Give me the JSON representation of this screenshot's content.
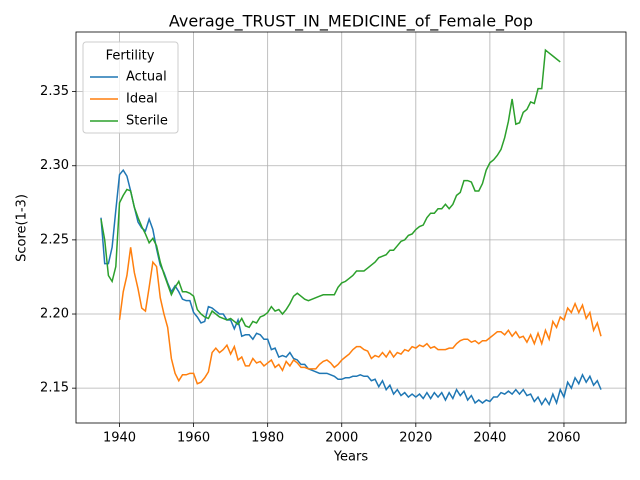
{
  "chart_data": {
    "type": "line",
    "title": "Average_TRUST_IN_MEDICINE_of_Female_Pop",
    "xlabel": "Years",
    "ylabel": "Score(1-3)",
    "legend_title": "Fertility",
    "legend_loc": "upper left",
    "grid": true,
    "xlim": [
      1928.25,
      2076.75
    ],
    "ylim": [
      2.1265,
      2.3902
    ],
    "xticks": [
      1940,
      1960,
      1980,
      2000,
      2020,
      2040,
      2060
    ],
    "yticks": [
      2.15,
      {
        "value": 2.2,
        "label": "2.20"
      },
      2.25,
      {
        "value": 2.3,
        "label": "2.30"
      },
      2.35
    ],
    "series": [
      {
        "name": "Actual",
        "color": "#1f77b4",
        "x": [
          1935,
          1936,
          1937,
          1938,
          1939,
          1940,
          1941,
          1942,
          1943,
          1944,
          1945,
          1946,
          1947,
          1948,
          1949,
          1950,
          1951,
          1952,
          1953,
          1954,
          1955,
          1956,
          1957,
          1958,
          1959,
          1960,
          1961,
          1962,
          1963,
          1964,
          1965,
          1966,
          1967,
          1968,
          1969,
          1970,
          1971,
          1972,
          1973,
          1974,
          1975,
          1976,
          1977,
          1978,
          1979,
          1980,
          1981,
          1982,
          1983,
          1984,
          1985,
          1986,
          1987,
          1988,
          1989,
          1990,
          1991,
          1992,
          1993,
          1994,
          1995,
          1996,
          1997,
          1998,
          1999,
          2000,
          2001,
          2002,
          2003,
          2004,
          2005,
          2006,
          2007,
          2008,
          2009,
          2010,
          2011,
          2012,
          2013,
          2014,
          2015,
          2016,
          2017,
          2018,
          2019,
          2020,
          2021,
          2022,
          2023,
          2024,
          2025,
          2026,
          2027,
          2028,
          2029,
          2030,
          2031,
          2032,
          2033,
          2034,
          2035,
          2036,
          2037,
          2038,
          2039,
          2040,
          2041,
          2042,
          2043,
          2044,
          2045,
          2046,
          2047,
          2048,
          2049,
          2050,
          2051,
          2052,
          2053,
          2054,
          2055,
          2056,
          2057,
          2058,
          2059,
          2060,
          2061,
          2062,
          2063,
          2064,
          2065,
          2066,
          2067,
          2068,
          2069,
          2070
        ],
        "values": [
          2.265,
          2.234,
          2.234,
          2.245,
          2.27,
          2.294,
          2.297,
          2.293,
          2.283,
          2.272,
          2.262,
          2.258,
          2.256,
          2.264,
          2.257,
          2.244,
          2.233,
          2.228,
          2.221,
          2.215,
          2.219,
          2.215,
          2.21,
          2.209,
          2.209,
          2.201,
          2.198,
          2.194,
          2.195,
          2.205,
          2.204,
          2.202,
          2.2,
          2.2,
          2.196,
          2.196,
          2.19,
          2.196,
          2.185,
          2.186,
          2.186,
          2.183,
          2.187,
          2.186,
          2.183,
          2.183,
          2.176,
          2.177,
          2.171,
          2.172,
          2.171,
          2.174,
          2.17,
          2.169,
          2.166,
          2.166,
          2.163,
          2.162,
          2.161,
          2.16,
          2.16,
          2.16,
          2.159,
          2.158,
          2.156,
          2.156,
          2.157,
          2.157,
          2.158,
          2.158,
          2.159,
          2.158,
          2.158,
          2.155,
          2.156,
          2.151,
          2.155,
          2.149,
          2.152,
          2.146,
          2.149,
          2.145,
          2.147,
          2.144,
          2.146,
          2.144,
          2.146,
          2.143,
          2.147,
          2.143,
          2.147,
          2.144,
          2.147,
          2.142,
          2.147,
          2.143,
          2.149,
          2.145,
          2.148,
          2.142,
          2.145,
          2.14,
          2.142,
          2.14,
          2.142,
          2.141,
          2.144,
          2.144,
          2.147,
          2.146,
          2.148,
          2.146,
          2.149,
          2.146,
          2.149,
          2.145,
          2.146,
          2.141,
          2.144,
          2.139,
          2.143,
          2.139,
          2.146,
          2.14,
          2.149,
          2.144,
          2.154,
          2.15,
          2.157,
          2.153,
          2.159,
          2.154,
          2.158,
          2.152,
          2.155,
          2.149
        ]
      },
      {
        "name": "Ideal",
        "color": "#ff7f0e",
        "x": [
          1940,
          1941,
          1942,
          1943,
          1944,
          1945,
          1946,
          1947,
          1948,
          1949,
          1950,
          1951,
          1952,
          1953,
          1954,
          1955,
          1956,
          1957,
          1958,
          1959,
          1960,
          1961,
          1962,
          1963,
          1964,
          1965,
          1966,
          1967,
          1968,
          1969,
          1970,
          1971,
          1972,
          1973,
          1974,
          1975,
          1976,
          1977,
          1978,
          1979,
          1980,
          1981,
          1982,
          1983,
          1984,
          1985,
          1986,
          1987,
          1988,
          1989,
          1990,
          1991,
          1992,
          1993,
          1994,
          1995,
          1996,
          1997,
          1998,
          1999,
          2000,
          2001,
          2002,
          2003,
          2004,
          2005,
          2006,
          2007,
          2008,
          2009,
          2010,
          2011,
          2012,
          2013,
          2014,
          2015,
          2016,
          2017,
          2018,
          2019,
          2020,
          2021,
          2022,
          2023,
          2024,
          2025,
          2026,
          2027,
          2028,
          2029,
          2030,
          2031,
          2032,
          2033,
          2034,
          2035,
          2036,
          2037,
          2038,
          2039,
          2040,
          2041,
          2042,
          2043,
          2044,
          2045,
          2046,
          2047,
          2048,
          2049,
          2050,
          2051,
          2052,
          2053,
          2054,
          2055,
          2056,
          2057,
          2058,
          2059,
          2060,
          2061,
          2062,
          2063,
          2064,
          2065,
          2066,
          2067,
          2068,
          2069,
          2070
        ],
        "values": [
          2.196,
          2.215,
          2.226,
          2.245,
          2.228,
          2.217,
          2.204,
          2.202,
          2.218,
          2.235,
          2.232,
          2.211,
          2.2,
          2.191,
          2.17,
          2.16,
          2.155,
          2.159,
          2.159,
          2.16,
          2.16,
          2.153,
          2.154,
          2.157,
          2.161,
          2.174,
          2.177,
          2.174,
          2.176,
          2.179,
          2.173,
          2.178,
          2.169,
          2.171,
          2.165,
          2.165,
          2.17,
          2.167,
          2.168,
          2.165,
          2.167,
          2.169,
          2.164,
          2.166,
          2.162,
          2.168,
          2.165,
          2.169,
          2.167,
          2.164,
          2.164,
          2.163,
          2.163,
          2.163,
          2.166,
          2.168,
          2.169,
          2.167,
          2.164,
          2.166,
          2.169,
          2.171,
          2.173,
          2.176,
          2.178,
          2.178,
          2.176,
          2.175,
          2.17,
          2.172,
          2.171,
          2.174,
          2.171,
          2.175,
          2.171,
          2.174,
          2.173,
          2.176,
          2.175,
          2.178,
          2.177,
          2.179,
          2.178,
          2.18,
          2.177,
          2.178,
          2.176,
          2.176,
          2.176,
          2.177,
          2.177,
          2.18,
          2.182,
          2.183,
          2.183,
          2.181,
          2.182,
          2.18,
          2.182,
          2.182,
          2.184,
          2.186,
          2.188,
          2.188,
          2.186,
          2.189,
          2.185,
          2.188,
          2.184,
          2.185,
          2.181,
          2.186,
          2.18,
          2.187,
          2.18,
          2.189,
          2.183,
          2.195,
          2.191,
          2.198,
          2.196,
          2.204,
          2.201,
          2.207,
          2.201,
          2.206,
          2.197,
          2.201,
          2.189,
          2.194,
          2.185
        ]
      },
      {
        "name": "Sterile",
        "color": "#2ca02c",
        "x": [
          1935,
          1936,
          1937,
          1938,
          1939,
          1940,
          1941,
          1942,
          1943,
          1944,
          1945,
          1946,
          1947,
          1948,
          1949,
          1950,
          1951,
          1952,
          1953,
          1954,
          1955,
          1956,
          1957,
          1958,
          1959,
          1960,
          1961,
          1962,
          1963,
          1964,
          1965,
          1966,
          1967,
          1968,
          1969,
          1970,
          1971,
          1972,
          1973,
          1974,
          1975,
          1976,
          1977,
          1978,
          1979,
          1980,
          1981,
          1982,
          1983,
          1984,
          1985,
          1986,
          1987,
          1988,
          1989,
          1990,
          1991,
          1992,
          1993,
          1994,
          1995,
          1996,
          1997,
          1998,
          1999,
          2000,
          2001,
          2002,
          2003,
          2004,
          2005,
          2006,
          2007,
          2008,
          2009,
          2010,
          2011,
          2012,
          2013,
          2014,
          2015,
          2016,
          2017,
          2018,
          2019,
          2020,
          2021,
          2022,
          2023,
          2024,
          2025,
          2026,
          2027,
          2028,
          2029,
          2030,
          2031,
          2032,
          2033,
          2034,
          2035,
          2036,
          2037,
          2038,
          2039,
          2040,
          2041,
          2042,
          2043,
          2044,
          2045,
          2046,
          2047,
          2048,
          2049,
          2050,
          2051,
          2052,
          2053,
          2054,
          2055,
          2056,
          2057,
          2058,
          2059
        ],
        "values": [
          2.264,
          2.25,
          2.226,
          2.222,
          2.232,
          2.275,
          2.28,
          2.284,
          2.283,
          2.272,
          2.265,
          2.259,
          2.254,
          2.248,
          2.251,
          2.246,
          2.235,
          2.227,
          2.22,
          2.213,
          2.218,
          2.222,
          2.215,
          2.215,
          2.214,
          2.212,
          2.203,
          2.2,
          2.198,
          2.197,
          2.202,
          2.2,
          2.198,
          2.197,
          2.196,
          2.197,
          2.195,
          2.193,
          2.197,
          2.192,
          2.191,
          2.195,
          2.194,
          2.198,
          2.199,
          2.201,
          2.205,
          2.202,
          2.203,
          2.2,
          2.203,
          2.207,
          2.212,
          2.214,
          2.212,
          2.21,
          2.209,
          2.21,
          2.211,
          2.212,
          2.213,
          2.213,
          2.213,
          2.213,
          2.218,
          2.221,
          2.222,
          2.224,
          2.226,
          2.229,
          2.229,
          2.229,
          2.231,
          2.233,
          2.235,
          2.238,
          2.239,
          2.24,
          2.243,
          2.243,
          2.246,
          2.249,
          2.25,
          2.253,
          2.254,
          2.257,
          2.259,
          2.26,
          2.265,
          2.268,
          2.268,
          2.271,
          2.271,
          2.274,
          2.271,
          2.274,
          2.28,
          2.282,
          2.29,
          2.29,
          2.289,
          2.283,
          2.283,
          2.288,
          2.297,
          2.302,
          2.304,
          2.307,
          2.311,
          2.319,
          2.33,
          2.345,
          2.328,
          2.329,
          2.336,
          2.338,
          2.343,
          2.342,
          2.352,
          2.352,
          2.378,
          2.376,
          2.374,
          2.372,
          2.37
        ]
      }
    ]
  }
}
